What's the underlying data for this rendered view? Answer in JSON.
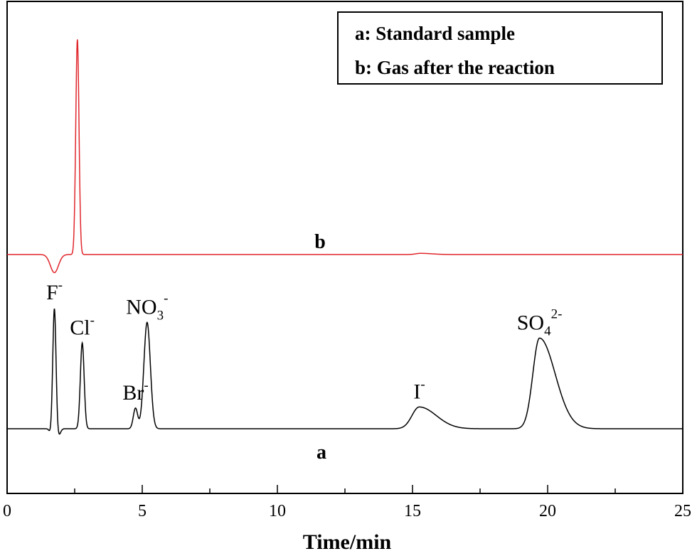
{
  "chart_data": {
    "type": "line",
    "xlabel": "Time/min",
    "ylabel": "",
    "xlim": [
      0,
      25
    ],
    "x_ticks": [
      0,
      5,
      10,
      15,
      20,
      25
    ],
    "x_tick_labels": [
      "0",
      "5",
      "10",
      "15",
      "20",
      "25"
    ],
    "y_ticks": [],
    "grid": false,
    "legend_position": "top-right",
    "legend": [
      "a: Standard sample",
      "b: Gas after the reaction"
    ],
    "colors": {
      "a": "#000000",
      "b": "#e0262b"
    },
    "series": [
      {
        "name": "a",
        "label": "a",
        "baseline": 0,
        "peaks": [
          {
            "ion": "F",
            "charge": "-",
            "time": 1.75,
            "height": 1.0,
            "width": 0.06
          },
          {
            "ion": "Cl",
            "charge": "-",
            "time": 2.78,
            "height": 0.71,
            "width": 0.07
          },
          {
            "ion": "Br",
            "charge": "-",
            "time": 4.75,
            "height": 0.17,
            "width": 0.08
          },
          {
            "ion": "NO",
            "sub": "3",
            "charge": "-",
            "time": 5.18,
            "height": 0.88,
            "width": 0.12
          },
          {
            "ion": "I",
            "charge": "-",
            "time": 15.25,
            "height": 0.18,
            "width": 0.6
          },
          {
            "ion": "SO",
            "sub": "4",
            "charge": "2-",
            "time": 19.7,
            "height": 0.75,
            "width": 0.55
          }
        ]
      },
      {
        "name": "b",
        "label": "b",
        "baseline": 0,
        "peaks": [
          {
            "time": 1.75,
            "height": -0.15,
            "width": 0.15
          },
          {
            "time": 2.6,
            "height": 1.78,
            "width": 0.06
          },
          {
            "time": 15.3,
            "height": 0.01,
            "width": 0.4
          }
        ]
      }
    ]
  }
}
